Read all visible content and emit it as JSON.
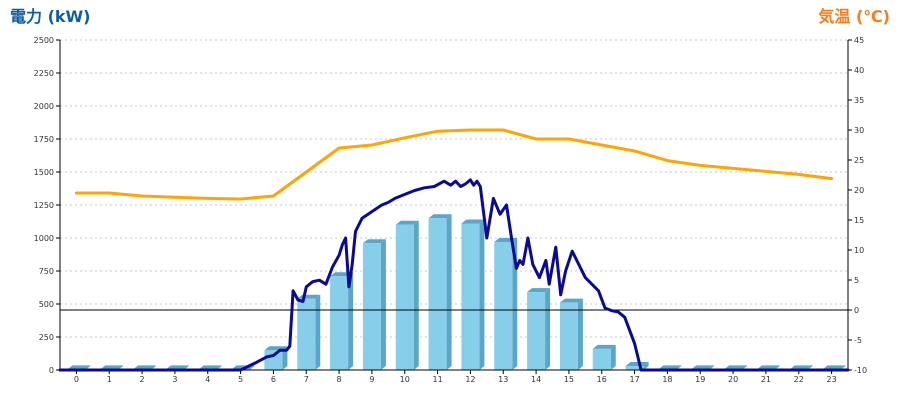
{
  "chart_data": {
    "type": "bar",
    "left_axis_title": "電力 (kW)",
    "right_axis_title": "気温 (℃)",
    "left_axis_title_color": "#0d5ea8",
    "right_axis_title_color": "#f0801e",
    "bar_color": "#87ceeb",
    "bar_side_color": "#5aa6c8",
    "power_line_color": "#0a0a96",
    "temp_line_color": "#ffa500",
    "grid": true,
    "y_left_range": [
      0,
      2500
    ],
    "y_right_range": [
      -10,
      45
    ],
    "y_left_ticks": [
      "0",
      "250",
      "500",
      "750",
      "1000",
      "1250",
      "1500",
      "1750",
      "2000",
      "2250",
      "2500"
    ],
    "y_right_ticks": [
      "-10",
      "-5",
      "0",
      "5",
      "10",
      "15",
      "20",
      "25",
      "30",
      "35",
      "40",
      "45"
    ],
    "x_range": [
      -0.5,
      23.5
    ],
    "categories": [
      "0",
      "1",
      "2",
      "3",
      "4",
      "5",
      "6",
      "7",
      "8",
      "9",
      "10",
      "11",
      "12",
      "13",
      "14",
      "15",
      "16",
      "17",
      "18",
      "19",
      "20",
      "21",
      "22",
      "23"
    ],
    "series": [
      {
        "type": "bar",
        "axis": "left",
        "values": [
          5,
          5,
          5,
          5,
          5,
          5,
          150,
          540,
          710,
          960,
          1100,
          1150,
          1110,
          970,
          590,
          510,
          160,
          30,
          5,
          5,
          5,
          5,
          5,
          5
        ]
      },
      {
        "type": "line",
        "axis": "left",
        "points": [
          [
            -0.5,
            0
          ],
          [
            5.0,
            0
          ],
          [
            5.5,
            60
          ],
          [
            5.8,
            100
          ],
          [
            6.0,
            110
          ],
          [
            6.2,
            150
          ],
          [
            6.4,
            150
          ],
          [
            6.5,
            180
          ],
          [
            6.6,
            600
          ],
          [
            6.75,
            530
          ],
          [
            6.9,
            520
          ],
          [
            7.0,
            630
          ],
          [
            7.2,
            670
          ],
          [
            7.4,
            680
          ],
          [
            7.6,
            650
          ],
          [
            7.8,
            780
          ],
          [
            8.0,
            870
          ],
          [
            8.1,
            950
          ],
          [
            8.2,
            1000
          ],
          [
            8.3,
            630
          ],
          [
            8.4,
            800
          ],
          [
            8.5,
            1050
          ],
          [
            8.7,
            1150
          ],
          [
            9.0,
            1200
          ],
          [
            9.3,
            1250
          ],
          [
            9.5,
            1270
          ],
          [
            9.7,
            1300
          ],
          [
            10.0,
            1330
          ],
          [
            10.3,
            1360
          ],
          [
            10.6,
            1380
          ],
          [
            10.9,
            1390
          ],
          [
            11.2,
            1430
          ],
          [
            11.4,
            1400
          ],
          [
            11.55,
            1430
          ],
          [
            11.7,
            1390
          ],
          [
            11.85,
            1410
          ],
          [
            12.0,
            1440
          ],
          [
            12.1,
            1400
          ],
          [
            12.2,
            1430
          ],
          [
            12.3,
            1390
          ],
          [
            12.5,
            1000
          ],
          [
            12.7,
            1300
          ],
          [
            12.9,
            1180
          ],
          [
            13.1,
            1250
          ],
          [
            13.25,
            1000
          ],
          [
            13.4,
            770
          ],
          [
            13.5,
            830
          ],
          [
            13.6,
            800
          ],
          [
            13.75,
            1000
          ],
          [
            13.9,
            800
          ],
          [
            14.1,
            700
          ],
          [
            14.3,
            830
          ],
          [
            14.4,
            650
          ],
          [
            14.6,
            930
          ],
          [
            14.75,
            570
          ],
          [
            14.9,
            750
          ],
          [
            15.1,
            900
          ],
          [
            15.3,
            800
          ],
          [
            15.5,
            700
          ],
          [
            15.7,
            650
          ],
          [
            15.9,
            600
          ],
          [
            16.1,
            470
          ],
          [
            16.3,
            450
          ],
          [
            16.5,
            440
          ],
          [
            16.7,
            400
          ],
          [
            17.0,
            200
          ],
          [
            17.2,
            0
          ],
          [
            23.5,
            0
          ]
        ]
      },
      {
        "type": "line",
        "axis": "right",
        "points": [
          [
            0,
            19.5
          ],
          [
            1,
            19.5
          ],
          [
            2,
            19.0
          ],
          [
            3,
            18.8
          ],
          [
            4,
            18.6
          ],
          [
            5,
            18.5
          ],
          [
            6,
            19.0
          ],
          [
            7,
            23.0
          ],
          [
            8,
            27.0
          ],
          [
            9,
            27.5
          ],
          [
            10,
            28.7
          ],
          [
            11,
            29.8
          ],
          [
            12,
            30.0
          ],
          [
            13,
            30.0
          ],
          [
            14,
            28.5
          ],
          [
            15,
            28.5
          ],
          [
            16,
            27.5
          ],
          [
            17,
            26.5
          ],
          [
            18,
            24.9
          ],
          [
            19,
            24.1
          ],
          [
            20,
            23.6
          ],
          [
            21,
            23.1
          ],
          [
            22,
            22.6
          ],
          [
            23,
            21.9
          ]
        ]
      }
    ]
  }
}
